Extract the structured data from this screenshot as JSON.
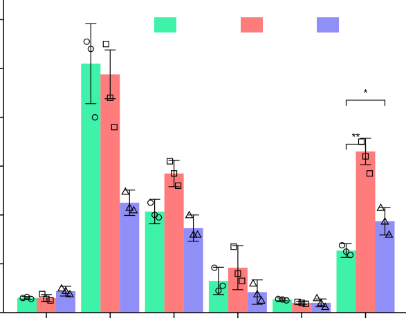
{
  "chart_data": {
    "type": "bar",
    "title": "",
    "xlabel": "",
    "ylabel": "",
    "ylim": [
      0,
      6.5
    ],
    "y_ticks": [
      0,
      1,
      2,
      3,
      4,
      5,
      6
    ],
    "categories": [
      "",
      "",
      "",
      "",
      "",
      ""
    ],
    "legend_position": "top",
    "colors": [
      "#3ff2a9",
      "#ff7c7c",
      "#8f8ff7"
    ],
    "markers": [
      "circle",
      "square",
      "triangle"
    ],
    "series": [
      {
        "values": [
          0.3,
          5.1,
          2.07,
          0.65,
          0.27,
          1.27
        ],
        "errors": [
          0.03,
          0.82,
          0.25,
          0.28,
          0.03,
          0.14
        ],
        "points": [
          [
            0.3,
            0.32,
            0.28
          ],
          [
            5.55,
            5.4,
            4.0
          ],
          [
            2.25,
            2.0,
            1.95
          ],
          [
            0.92,
            0.45,
            0.55
          ],
          [
            0.28,
            0.27,
            0.25
          ],
          [
            1.38,
            1.25,
            1.18
          ]
        ]
      },
      {
        "values": [
          0.3,
          4.88,
          2.85,
          0.92,
          0.2,
          3.3
        ],
        "errors": [
          0.07,
          0.5,
          0.27,
          0.45,
          0.03,
          0.27
        ],
        "points": [
          [
            0.38,
            0.28,
            0.25
          ],
          [
            5.5,
            4.4,
            3.8
          ],
          [
            3.1,
            2.85,
            2.6
          ],
          [
            1.35,
            0.8,
            0.65
          ],
          [
            0.22,
            0.2,
            0.18
          ],
          [
            3.5,
            3.2,
            2.85
          ]
        ]
      },
      {
        "values": [
          0.44,
          2.25,
          1.73,
          0.42,
          0.2,
          1.87
        ],
        "errors": [
          0.1,
          0.26,
          0.27,
          0.25,
          0.08,
          0.28
        ],
        "points": [
          [
            0.5,
            0.45,
            0.38
          ],
          [
            2.48,
            2.15,
            2.1
          ],
          [
            2.0,
            1.6,
            1.6
          ],
          [
            0.6,
            0.38,
            0.25
          ],
          [
            0.3,
            0.2,
            0.12
          ],
          [
            2.15,
            1.87,
            1.6
          ]
        ]
      }
    ],
    "annotations": [
      {
        "text": "**",
        "category_index": 5,
        "from_series": 0,
        "to_series": 1,
        "level": 3.45
      },
      {
        "text": "*",
        "category_index": 5,
        "from_series": 0,
        "to_series": 2,
        "level": 4.35
      }
    ]
  }
}
